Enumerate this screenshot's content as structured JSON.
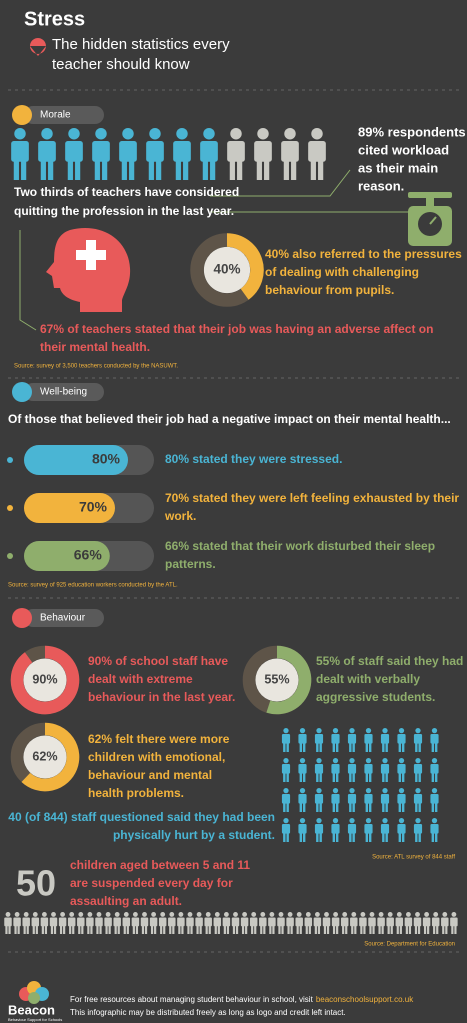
{
  "header": {
    "title": "Stress",
    "subtitle": [
      "The hidden statistics every",
      "teacher should know"
    ]
  },
  "morale": {
    "heading": "Morale",
    "workload": [
      "89% respondents",
      "cited workload",
      "as their main",
      "reason."
    ],
    "quitting": [
      "Two thirds of teachers have considered",
      "quitting the profession in the last year."
    ],
    "challenging": {
      "donut": {
        "value": 40,
        "label": "40%"
      },
      "text": [
        "40% also referred to the pressures",
        "of dealing with challenging",
        "behaviour from pupils."
      ]
    },
    "adverse": [
      "67% of teachers stated that their job was having an adverse affect on",
      "their mental health."
    ],
    "source": "Source: survey of 3,500 teachers conducted by the NASUWT."
  },
  "wellbeing": {
    "heading": "Well-being",
    "intro": "Of those that believed their job had a negative impact on their mental health...",
    "bars": [
      {
        "value": 80,
        "label": "80%",
        "text": [
          "80% stated they were stressed."
        ]
      },
      {
        "value": 70,
        "label": "70%",
        "text": [
          "70% stated they were left feeling exhausted by their",
          "work."
        ]
      },
      {
        "value": 66,
        "label": "66%",
        "text": [
          "66% stated that their work disturbed their sleep",
          "patterns."
        ]
      }
    ],
    "source": "Source: survey of 925 education workers conducted by the ATL."
  },
  "behaviour": {
    "heading": "Behaviour",
    "stats": [
      {
        "value": 90,
        "label": "90%",
        "text": [
          "90% of school staff have",
          "dealt with extreme",
          "behaviour in the last year."
        ]
      },
      {
        "value": 55,
        "label": "55%",
        "text": [
          "55% of staff said they had",
          "dealt with verbally",
          "aggressive students."
        ]
      },
      {
        "value": 62,
        "label": "62%",
        "text": [
          "62% felt there were more",
          "children with emotional,",
          "behaviour and mental",
          "health problems."
        ]
      }
    ],
    "hurt": {
      "text": [
        "40 (of 844) staff questioned said they had been",
        "physically hurt by a student."
      ],
      "source": "Source: ATL survey of 844 staff"
    },
    "suspended": {
      "number": 50,
      "text": [
        "children aged between 5 and 11",
        "are suspended every day for",
        "assaulting an adult."
      ],
      "source": "Source: Department for Education"
    }
  },
  "footer": {
    "logo": "Beacon",
    "tagline": "Behaviour Support for Schools",
    "resources": "For free resources about managing student behaviour in school, visit",
    "link": "beaconschoolsupport.co.uk",
    "license": "This infographic may be distributed freely as long as logo and credit left intact."
  }
}
